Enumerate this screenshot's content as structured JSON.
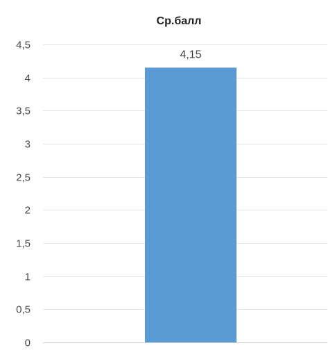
{
  "chart_data": {
    "type": "bar",
    "title": "Ср.балл",
    "categories": [
      ""
    ],
    "values": [
      4.15
    ],
    "value_labels": [
      "4,15"
    ],
    "ylim": [
      0,
      4.5
    ],
    "y_ticks": [
      0,
      0.5,
      1,
      1.5,
      2,
      2.5,
      3,
      3.5,
      4,
      4.5
    ],
    "y_tick_labels": [
      "0",
      "0,5",
      "1",
      "1,5",
      "2",
      "2,5",
      "3",
      "3,5",
      "4",
      "4,5"
    ],
    "grid": true,
    "legend": "none",
    "bar_color": "#5b9bd5",
    "xlabel": "",
    "ylabel": ""
  }
}
